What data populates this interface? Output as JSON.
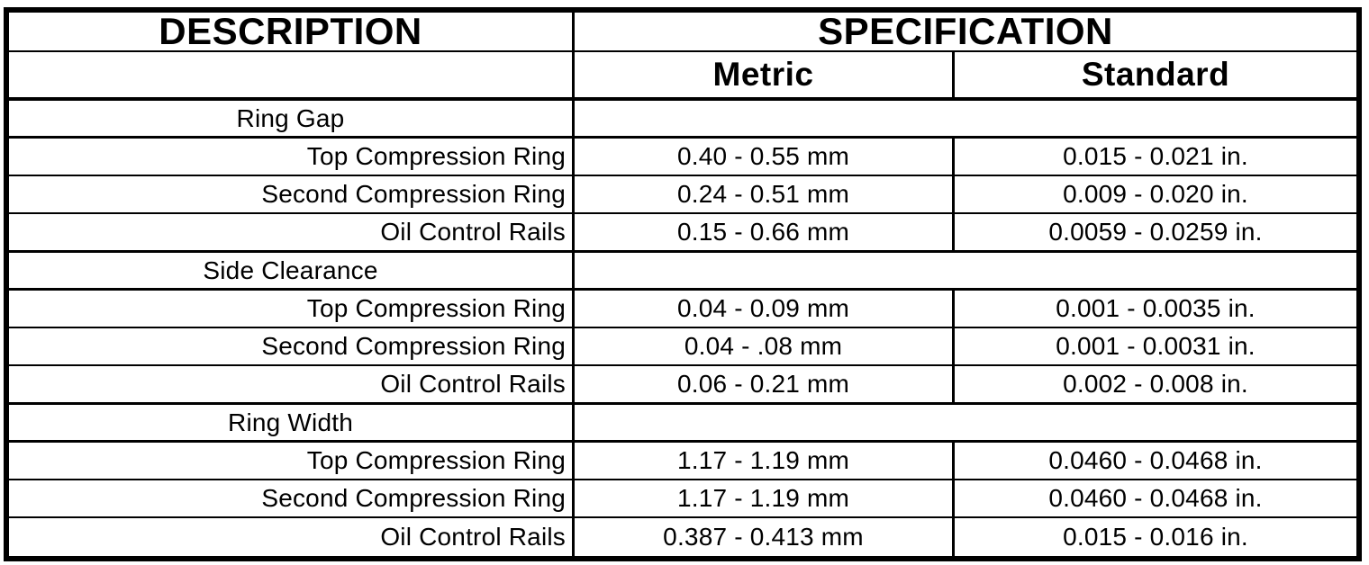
{
  "colors": {
    "ink": "#000000",
    "paper": "#ffffff"
  },
  "header": {
    "description": "DESCRIPTION",
    "specification": "SPECIFICATION",
    "metric": "Metric",
    "standard": "Standard"
  },
  "sections": [
    {
      "title": "Ring Gap",
      "rows": [
        {
          "label": "Top Compression Ring",
          "metric": "0.40 - 0.55 mm",
          "standard": "0.015 - 0.021 in."
        },
        {
          "label": "Second Compression Ring",
          "metric": "0.24 - 0.51 mm",
          "standard": "0.009 - 0.020 in."
        },
        {
          "label": "Oil Control Rails",
          "metric": "0.15 - 0.66 mm",
          "standard": "0.0059 - 0.0259 in."
        }
      ]
    },
    {
      "title": "Side Clearance",
      "rows": [
        {
          "label": "Top Compression Ring",
          "metric": "0.04 - 0.09 mm",
          "standard": "0.001 - 0.0035 in."
        },
        {
          "label": "Second Compression Ring",
          "metric": "0.04 - .08 mm",
          "standard": "0.001 - 0.0031 in."
        },
        {
          "label": "Oil Control Rails",
          "metric": "0.06 - 0.21 mm",
          "standard": "0.002 - 0.008 in."
        }
      ]
    },
    {
      "title": "Ring Width",
      "rows": [
        {
          "label": "Top Compression Ring",
          "metric": "1.17 - 1.19 mm",
          "standard": "0.0460 - 0.0468 in."
        },
        {
          "label": "Second Compression Ring",
          "metric": "1.17 - 1.19 mm",
          "standard": "0.0460 - 0.0468 in."
        },
        {
          "label": "Oil Control Rails",
          "metric": "0.387 - 0.413 mm",
          "standard": "0.015 - 0.016 in."
        }
      ]
    }
  ]
}
